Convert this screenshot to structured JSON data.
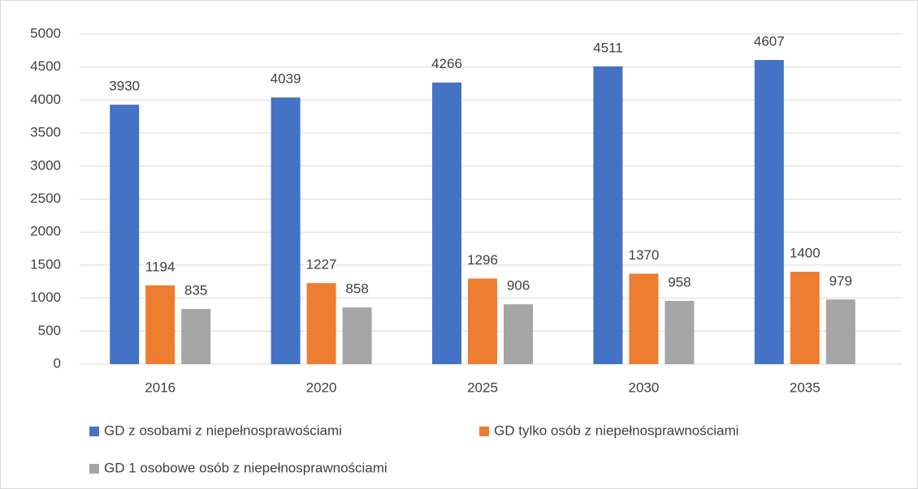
{
  "chart_data": {
    "type": "bar",
    "categories": [
      "2016",
      "2020",
      "2025",
      "2030",
      "2035"
    ],
    "series": [
      {
        "name": "GD z osobami z niepełnosprawościami",
        "color": "#4472c4",
        "values": [
          3930,
          4039,
          4266,
          4511,
          4607
        ]
      },
      {
        "name": "GD tylko osób z niepełnosprawnościami",
        "color": "#ed7d31",
        "values": [
          1194,
          1227,
          1296,
          1370,
          1400
        ]
      },
      {
        "name": "GD 1 osobowe osób z niepełnosprawnościami",
        "color": "#a5a5a5",
        "values": [
          835,
          858,
          906,
          958,
          979
        ]
      }
    ],
    "ylim": [
      0,
      5000
    ],
    "yticks": [
      0,
      500,
      1000,
      1500,
      2000,
      2500,
      3000,
      3500,
      4000,
      4500,
      5000
    ],
    "grid": true,
    "legend": "bottom"
  }
}
